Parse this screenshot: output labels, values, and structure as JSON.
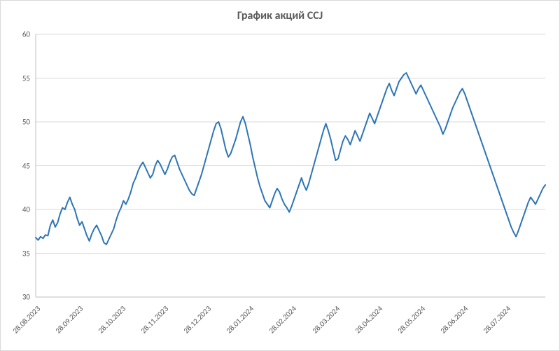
{
  "chart": {
    "type": "line",
    "title": "График акций CCJ",
    "title_fontsize": 16,
    "title_color": "#595959",
    "background_color": "#ffffff",
    "border_color": "#d9d9d9",
    "grid_color": "#d9d9d9",
    "axis_color": "#bfbfbf",
    "label_color": "#595959",
    "label_fontsize": 11,
    "line_color": "#2e75b6",
    "line_width": 2,
    "ylim": [
      30,
      60
    ],
    "ytick_step": 5,
    "yticks": [
      30,
      35,
      40,
      45,
      50,
      55,
      60
    ],
    "x_tick_labels": [
      "28.08.2023",
      "28.09.2023",
      "28.10.2023",
      "28.11.2023",
      "28.12.2023",
      "28.01.2024",
      "28.02.2024",
      "28.03.2024",
      "28.04.2024",
      "28.05.2024",
      "28.06.2024",
      "28.07.2024"
    ],
    "x_label_rotation_deg": -45,
    "series": {
      "name": "CCJ",
      "values": [
        36.8,
        36.5,
        36.9,
        36.7,
        37.1,
        37.0,
        38.2,
        38.8,
        38.0,
        38.5,
        39.5,
        40.2,
        40.0,
        40.8,
        41.4,
        40.6,
        40.0,
        39.0,
        38.2,
        38.6,
        37.8,
        37.0,
        36.4,
        37.2,
        37.8,
        38.2,
        37.6,
        37.0,
        36.2,
        36.0,
        36.6,
        37.2,
        37.8,
        38.8,
        39.6,
        40.2,
        41.0,
        40.6,
        41.2,
        42.0,
        43.0,
        43.6,
        44.4,
        45.0,
        45.4,
        44.8,
        44.2,
        43.6,
        44.0,
        45.0,
        45.6,
        45.2,
        44.6,
        44.0,
        44.6,
        45.4,
        46.0,
        46.2,
        45.4,
        44.6,
        44.0,
        43.4,
        42.8,
        42.2,
        41.8,
        41.6,
        42.4,
        43.2,
        44.0,
        45.0,
        46.0,
        47.0,
        48.0,
        49.0,
        49.8,
        50.0,
        49.2,
        48.0,
        46.8,
        46.0,
        46.4,
        47.2,
        48.0,
        49.0,
        50.0,
        50.6,
        49.8,
        48.6,
        47.4,
        46.0,
        44.8,
        43.6,
        42.6,
        41.8,
        41.0,
        40.6,
        40.2,
        41.0,
        41.8,
        42.4,
        42.0,
        41.2,
        40.6,
        40.2,
        39.7,
        40.4,
        41.2,
        42.0,
        42.8,
        43.6,
        42.8,
        42.2,
        43.0,
        44.0,
        45.0,
        46.0,
        47.0,
        48.0,
        49.0,
        49.8,
        49.0,
        48.0,
        46.8,
        45.6,
        45.8,
        46.8,
        47.8,
        48.4,
        48.0,
        47.4,
        48.2,
        49.0,
        48.4,
        47.8,
        48.6,
        49.4,
        50.2,
        51.0,
        50.4,
        49.8,
        50.6,
        51.4,
        52.2,
        53.0,
        53.8,
        54.4,
        53.6,
        53.0,
        53.8,
        54.6,
        55.0,
        55.4,
        55.6,
        55.0,
        54.4,
        53.8,
        53.2,
        53.8,
        54.2,
        53.6,
        53.0,
        52.4,
        51.8,
        51.2,
        50.6,
        50.0,
        49.4,
        48.6,
        49.2,
        50.0,
        50.8,
        51.6,
        52.2,
        52.8,
        53.4,
        53.8,
        53.2,
        52.4,
        51.6,
        50.8,
        50.0,
        49.2,
        48.4,
        47.6,
        46.8,
        46.0,
        45.2,
        44.4,
        43.6,
        42.8,
        42.0,
        41.2,
        40.4,
        39.6,
        38.8,
        38.0,
        37.4,
        36.9,
        37.6,
        38.4,
        39.2,
        40.0,
        40.8,
        41.4,
        41.0,
        40.6,
        41.2,
        41.8,
        42.4,
        42.8
      ]
    }
  }
}
